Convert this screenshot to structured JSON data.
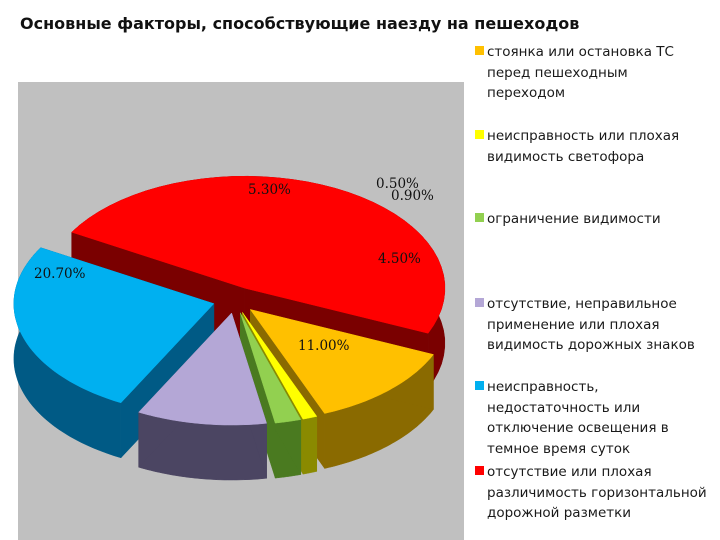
{
  "chart_data": {
    "type": "pie",
    "title": "Основные факторы, способствующие наезду на пешеходов",
    "categories": [
      "стоянка или остановка ТС перед пешеходным переходом",
      "неисправность или плохая видимость светофора",
      "ограничение видимости",
      "отсутствие, неправильное применение или плохая видимость дорожных знаков",
      "неисправность, недостаточность или отключение освещения в темное время суток",
      "отсутствие или плохая различимость горизонтальной дорожной разметки"
    ],
    "values": [
      5.3,
      0.5,
      0.9,
      4.5,
      11.0,
      20.7
    ],
    "data_labels": [
      "5.30%",
      "0.50%",
      "0.90%",
      "4.50%",
      "11.00%",
      "20.70%"
    ],
    "colors": [
      "#ffc000",
      "#ffff00",
      "#92d050",
      "#b4a7d6",
      "#00b0f0",
      "#ff0000"
    ],
    "side_colors": [
      "#8a6a00",
      "#8a8a00",
      "#4a7a20",
      "#4b4562",
      "#005a85",
      "#7a0000"
    ],
    "legend_position": "right",
    "exploded": true,
    "three_d": true
  }
}
